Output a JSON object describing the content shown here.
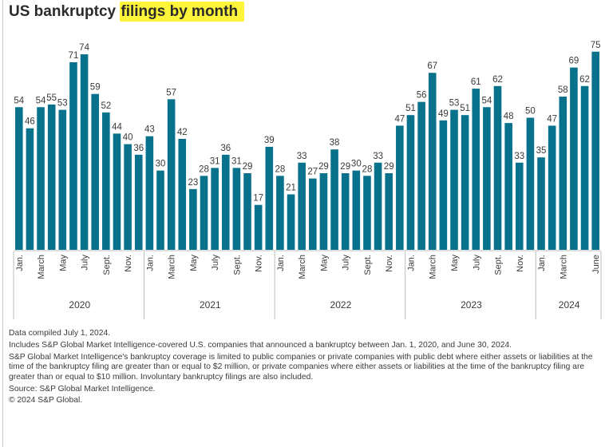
{
  "title": {
    "plain": "US bankruptcy ",
    "highlighted": "filings by month",
    "highlight_color": "#fff53a"
  },
  "chart_data": {
    "type": "bar",
    "title": "US bankruptcy filings by month",
    "xlabel": "",
    "ylabel": "",
    "ylim": [
      0,
      75
    ],
    "grid": false,
    "bar_color": "#08718c",
    "groups": [
      {
        "year": "2020",
        "months": [
          "Jan.",
          "Feb.",
          "March",
          "April",
          "May",
          "June",
          "July",
          "Aug.",
          "Sept.",
          "Oct.",
          "Nov.",
          "Dec."
        ],
        "tick_labels": [
          "Jan.",
          "",
          "March",
          "",
          "May",
          "",
          "July",
          "",
          "Sept.",
          "",
          "Nov.",
          ""
        ],
        "values": [
          54,
          46,
          54,
          55,
          53,
          71,
          74,
          59,
          52,
          44,
          40,
          36
        ]
      },
      {
        "year": "2021",
        "months": [
          "Jan.",
          "Feb.",
          "March",
          "April",
          "May",
          "June",
          "July",
          "Aug.",
          "Sept.",
          "Oct.",
          "Nov.",
          "Dec."
        ],
        "tick_labels": [
          "Jan.",
          "",
          "March",
          "",
          "May",
          "",
          "July",
          "",
          "Sept.",
          "",
          "Nov.",
          ""
        ],
        "values": [
          43,
          30,
          57,
          42,
          23,
          28,
          31,
          36,
          31,
          29,
          17,
          39
        ]
      },
      {
        "year": "2022",
        "months": [
          "Jan.",
          "Feb.",
          "March",
          "April",
          "May",
          "June",
          "July",
          "Aug.",
          "Sept.",
          "Oct.",
          "Nov.",
          "Dec."
        ],
        "tick_labels": [
          "Jan.",
          "",
          "March",
          "",
          "May",
          "",
          "July",
          "",
          "Sept.",
          "",
          "Nov.",
          ""
        ],
        "values": [
          28,
          21,
          33,
          27,
          29,
          38,
          29,
          30,
          28,
          33,
          29,
          47
        ]
      },
      {
        "year": "2023",
        "months": [
          "Jan.",
          "Feb.",
          "March",
          "April",
          "May",
          "June",
          "July",
          "Aug.",
          "Sept.",
          "Oct.",
          "Nov.",
          "Dec."
        ],
        "tick_labels": [
          "Jan.",
          "",
          "March",
          "",
          "May",
          "",
          "July",
          "",
          "Sept.",
          "",
          "Nov.",
          ""
        ],
        "values": [
          51,
          56,
          67,
          49,
          53,
          51,
          61,
          54,
          62,
          48,
          33,
          50
        ]
      },
      {
        "year": "2024",
        "months": [
          "Jan.",
          "Feb.",
          "March",
          "April",
          "May",
          "June"
        ],
        "tick_labels": [
          "Jan.",
          "",
          "March",
          "",
          "",
          "June"
        ],
        "values": [
          35,
          47,
          58,
          69,
          62,
          75
        ]
      }
    ]
  },
  "notes": [
    "Data compiled July 1, 2024.",
    "Includes S&P Global Market Intelligence-covered U.S. companies that announced a bankruptcy between Jan. 1, 2020, and June 30, 2024.",
    "S&P Global Market Intelligence's bankruptcy coverage is limited to public companies or private companies with public debt where either assets or liabilities at the time of the bankruptcy filing are greater than or equal to $2 million, or private companies where either assets or liabilities at the time of the bankruptcy filing are greater than or equal to $10 million. Involuntary bankruptcy filings are also included.",
    "Source: S&P Global Market Intelligence.",
    "© 2024 S&P Global."
  ]
}
